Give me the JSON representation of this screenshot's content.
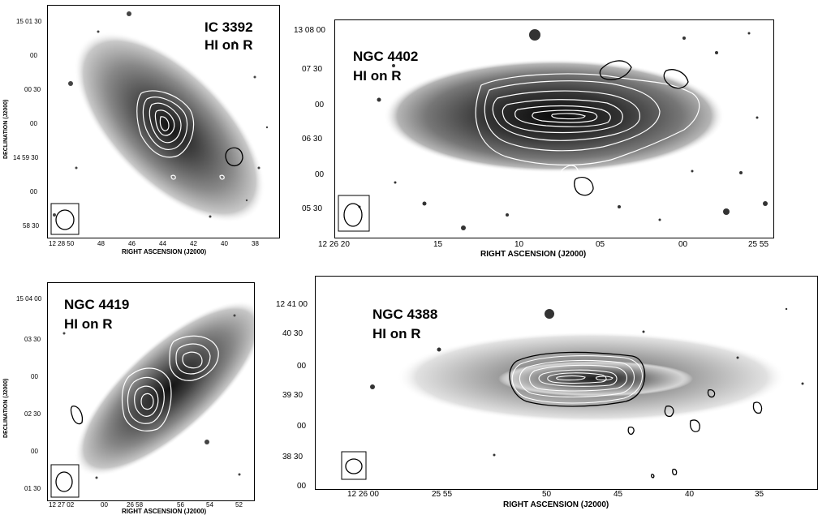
{
  "panels": {
    "ic3392": {
      "title": "IC 3392",
      "subtitle": "HI on R",
      "yaxis": "DECLINATION (J2000)",
      "xaxis": "RIGHT ASCENSION (J2000)",
      "yticks": [
        "15 01 30",
        "00",
        "00 30",
        "00",
        "14 59 30",
        "00",
        "58 30"
      ],
      "xticks": [
        "12 28 50",
        "48",
        "46",
        "44",
        "42",
        "40",
        "38"
      ]
    },
    "ngc4402": {
      "title": "NGC 4402",
      "subtitle": "HI on R",
      "xaxis": "RIGHT ASCENSION (J2000)",
      "yticks": [
        "13 08 00",
        "07 30",
        "00",
        "06 30",
        "00",
        "05 30"
      ],
      "xticks": [
        "12 26 20",
        "15",
        "10",
        "05",
        "00",
        "25 55"
      ]
    },
    "ngc4419": {
      "title": "NGC 4419",
      "subtitle": "HI on R",
      "yaxis": "DECLINATION (J2000)",
      "xaxis": "RIGHT ASCENSION (J2000)",
      "yticks": [
        "15 04 00",
        "03 30",
        "00",
        "02 30",
        "00",
        "01 30"
      ],
      "xticks": [
        "12 27 02",
        "00",
        "26 58",
        "56",
        "54",
        "52"
      ]
    },
    "ngc4388": {
      "title": "NGC 4388",
      "subtitle": "HI on R",
      "xaxis": "RIGHT ASCENSION (J2000)",
      "yticks": [
        "12 41 00",
        "40 30",
        "00",
        "39 30",
        "00",
        "38 30",
        "00"
      ],
      "xticks": [
        "12 26 00",
        "25 55",
        "50",
        "45",
        "40",
        "35"
      ]
    }
  }
}
